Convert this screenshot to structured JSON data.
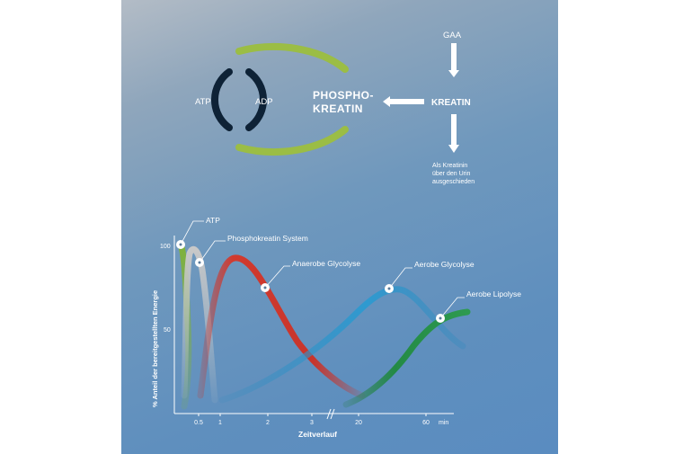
{
  "cycle": {
    "atp": "ATP",
    "adp": "ADP",
    "phospho_line1": "PHOSPHO-",
    "phospho_line2": "KREATIN",
    "kreatin": "KREATIN",
    "gaa": "GAA",
    "urin_line1": "Als Kreatinin",
    "urin_line2": "über den Urin",
    "urin_line3": "ausgeschieden",
    "colors": {
      "dark_ring": "#0e2236",
      "green_ring": "#9bbd45",
      "arrow": "#ffffff"
    }
  },
  "chart_data": {
    "type": "line",
    "xlabel": "Zeitverlauf",
    "ylabel": "% Anteil der bereitgestellten Energie",
    "y_ticks": [
      "100",
      "50"
    ],
    "x_ticks": [
      "0.5",
      "1",
      "2",
      "3",
      "20",
      "60"
    ],
    "x_unit": "min",
    "x_axis_break": true,
    "ylim": [
      0,
      100
    ],
    "series": [
      {
        "name": "ATP",
        "color": "#7fb239",
        "points": [
          [
            0.05,
            100
          ],
          [
            0.25,
            40
          ],
          [
            0.45,
            0
          ]
        ],
        "marker_at": [
          0.05,
          100
        ]
      },
      {
        "name": "Phosphokreatin System",
        "color": "#b4b4b4",
        "points": [
          [
            0.05,
            0
          ],
          [
            0.3,
            95
          ],
          [
            0.7,
            50
          ],
          [
            1,
            0
          ]
        ],
        "marker_at": [
          0.5,
          90
        ]
      },
      {
        "name": "Anaerobe Glycolyse",
        "color": "#c8352c",
        "points": [
          [
            0.7,
            0
          ],
          [
            1.4,
            92
          ],
          [
            2.5,
            50
          ],
          [
            4,
            20
          ],
          [
            20,
            0
          ]
        ],
        "marker_at": [
          2,
          75
        ]
      },
      {
        "name": "Aerobe Glycolyse",
        "color": "#2e89bd",
        "points": [
          [
            1,
            0
          ],
          [
            4,
            35
          ],
          [
            30,
            75
          ],
          [
            90,
            40
          ]
        ],
        "marker_at": [
          30,
          75
        ]
      },
      {
        "name": "Aerobe Lipolyse",
        "color": "#2e8a46",
        "points": [
          [
            20,
            0
          ],
          [
            60,
            50
          ],
          [
            90,
            60
          ]
        ],
        "marker_at": [
          75,
          55
        ]
      }
    ]
  }
}
